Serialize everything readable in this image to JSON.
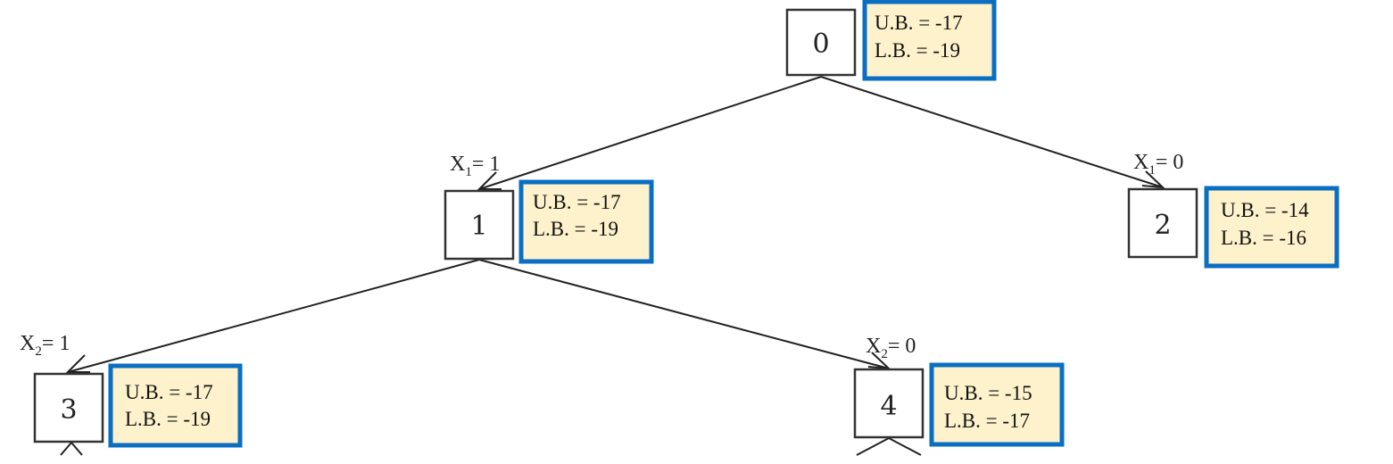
{
  "nodes": [
    {
      "id": "0",
      "label": "0",
      "ub": "U.B. = -17",
      "lb": "L.B. = -19"
    },
    {
      "id": "1",
      "label": "1",
      "ub": "U.B. = -17",
      "lb": "L.B. = -19"
    },
    {
      "id": "2",
      "label": "2",
      "ub": "U.B. = -14",
      "lb": "L.B. = -16"
    },
    {
      "id": "3",
      "label": "3",
      "ub": "U.B. = -17",
      "lb": "L.B. = -19"
    },
    {
      "id": "4",
      "label": "4",
      "ub": "U.B. = -15",
      "lb": "L.B. = -17"
    }
  ],
  "edges": [
    {
      "from": "0",
      "to": "1",
      "var": "X",
      "sub": "1",
      "val": "= 1"
    },
    {
      "from": "0",
      "to": "2",
      "var": "X",
      "sub": "1",
      "val": "= 0"
    },
    {
      "from": "1",
      "to": "3",
      "var": "X",
      "sub": "2",
      "val": "= 1"
    },
    {
      "from": "1",
      "to": "4",
      "var": "X",
      "sub": "2",
      "val": "= 0"
    }
  ],
  "colors": {
    "bound_border": "#0a6fc2",
    "bound_fill": "#fdf2cc"
  }
}
